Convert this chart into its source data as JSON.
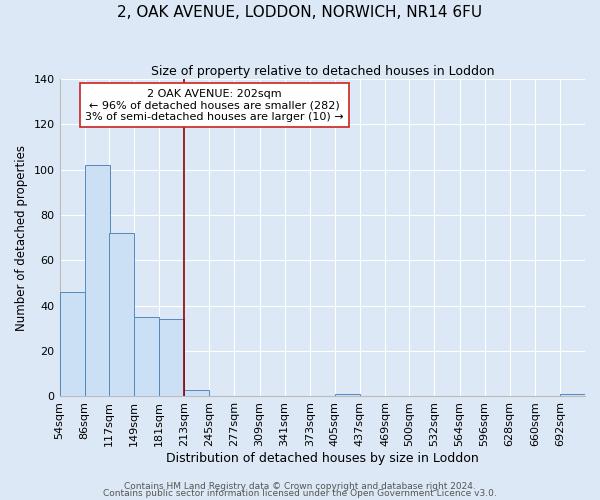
{
  "title": "2, OAK AVENUE, LODDON, NORWICH, NR14 6FU",
  "subtitle": "Size of property relative to detached houses in Loddon",
  "xlabel": "Distribution of detached houses by size in Loddon",
  "ylabel": "Number of detached properties",
  "bin_left_edges": [
    54,
    86,
    117,
    149,
    181,
    213,
    245,
    277,
    309,
    341,
    373,
    405,
    437,
    469,
    500,
    532,
    564,
    596,
    628,
    660,
    692
  ],
  "bin_labels": [
    "54sqm",
    "86sqm",
    "117sqm",
    "149sqm",
    "181sqm",
    "213sqm",
    "245sqm",
    "277sqm",
    "309sqm",
    "341sqm",
    "373sqm",
    "405sqm",
    "437sqm",
    "469sqm",
    "500sqm",
    "532sqm",
    "564sqm",
    "596sqm",
    "628sqm",
    "660sqm",
    "692sqm"
  ],
  "bar_heights": [
    46,
    102,
    72,
    35,
    34,
    3,
    0,
    0,
    0,
    0,
    0,
    1,
    0,
    0,
    0,
    0,
    0,
    0,
    0,
    0,
    1
  ],
  "bar_color": "#cce0f5",
  "bar_edge_color": "#5588bb",
  "property_line_x": 213,
  "property_line_color": "#8b0000",
  "annotation_line1": "2 OAK AVENUE: 202sqm",
  "annotation_line2": "← 96% of detached houses are smaller (282)",
  "annotation_line3": "3% of semi-detached houses are larger (10) →",
  "ylim": [
    0,
    140
  ],
  "yticks": [
    0,
    20,
    40,
    60,
    80,
    100,
    120,
    140
  ],
  "bg_color": "#dce8f5",
  "plot_bg_color": "#dce8f5",
  "grid_color": "#ffffff",
  "footer1": "Contains HM Land Registry data © Crown copyright and database right 2024.",
  "footer2": "Contains public sector information licensed under the Open Government Licence v3.0."
}
